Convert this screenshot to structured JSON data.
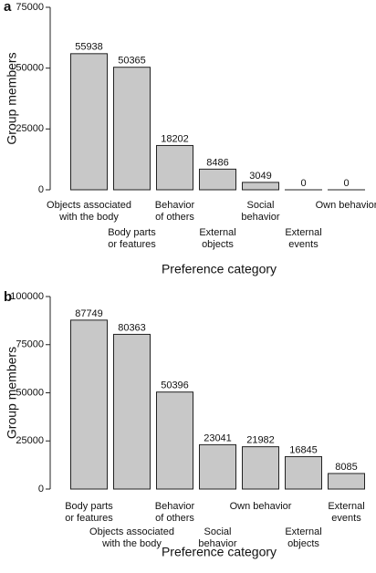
{
  "chart_data": [
    {
      "type": "bar",
      "panel": "a",
      "ylabel": "Group members",
      "xlabel": "Preference category",
      "categories": [
        [
          "Objects associated",
          "with the body"
        ],
        [
          "Body parts",
          "or features"
        ],
        [
          "Behavior",
          "of others"
        ],
        [
          "External",
          "objects"
        ],
        [
          "Social",
          "behavior"
        ],
        [
          "External",
          "events"
        ],
        [
          "Own behavior"
        ]
      ],
      "values": [
        55938,
        50365,
        18202,
        8486,
        3049,
        0,
        0
      ],
      "color": "#c8c8c8",
      "ylim": [
        0,
        75000
      ],
      "yticks": [
        0,
        25000,
        50000,
        75000
      ]
    },
    {
      "type": "bar",
      "panel": "b",
      "ylabel": "Group members",
      "xlabel": "Preference category",
      "categories": [
        [
          "Body parts",
          "or features"
        ],
        [
          "Objects associated",
          "with the body"
        ],
        [
          "Behavior",
          "of others"
        ],
        [
          "Social",
          "behavior"
        ],
        [
          "Own behavior"
        ],
        [
          "External",
          "objects"
        ],
        [
          "External",
          "events"
        ]
      ],
      "values": [
        87749,
        80363,
        50396,
        23041,
        21982,
        16845,
        8085
      ],
      "color": "#c8c8c8",
      "ylim": [
        0,
        100000
      ],
      "yticks": [
        0,
        25000,
        50000,
        75000,
        100000
      ]
    }
  ]
}
